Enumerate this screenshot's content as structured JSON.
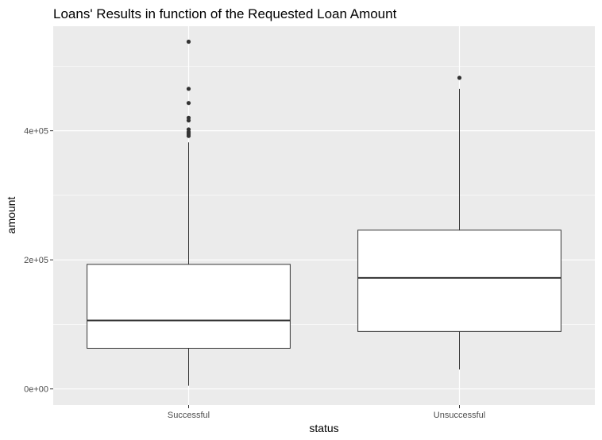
{
  "chart_data": {
    "type": "boxplot",
    "title": "Loans' Results in function of the Requested Loan Amount",
    "xlabel": "status",
    "ylabel": "amount",
    "categories": [
      "Successful",
      "Unsuccessful"
    ],
    "ylim": [
      -25000,
      562000
    ],
    "yticks": [
      0,
      200000,
      400000
    ],
    "ytick_labels": [
      "0e+00",
      "2e+05",
      "4e+05"
    ],
    "grid": true,
    "boxes": [
      {
        "category": "Successful",
        "whisker_low": 5000,
        "q1": 63000,
        "median": 106000,
        "q3": 193000,
        "whisker_high": 382000,
        "outliers": [
          538000,
          465000,
          443000,
          420000,
          416000,
          402000,
          398000,
          395000,
          392000
        ]
      },
      {
        "category": "Unsuccessful",
        "whisker_low": 30000,
        "q1": 89000,
        "median": 172000,
        "q3": 246000,
        "whisker_high": 465000,
        "outliers": [
          482000
        ]
      }
    ],
    "colors": {
      "panel_bg": "#ebebeb",
      "grid_major": "#ffffff",
      "box_fill": "#ffffff",
      "box_stroke": "#333333",
      "outlier": "#333333",
      "tick_text": "#4d4d4d"
    }
  }
}
